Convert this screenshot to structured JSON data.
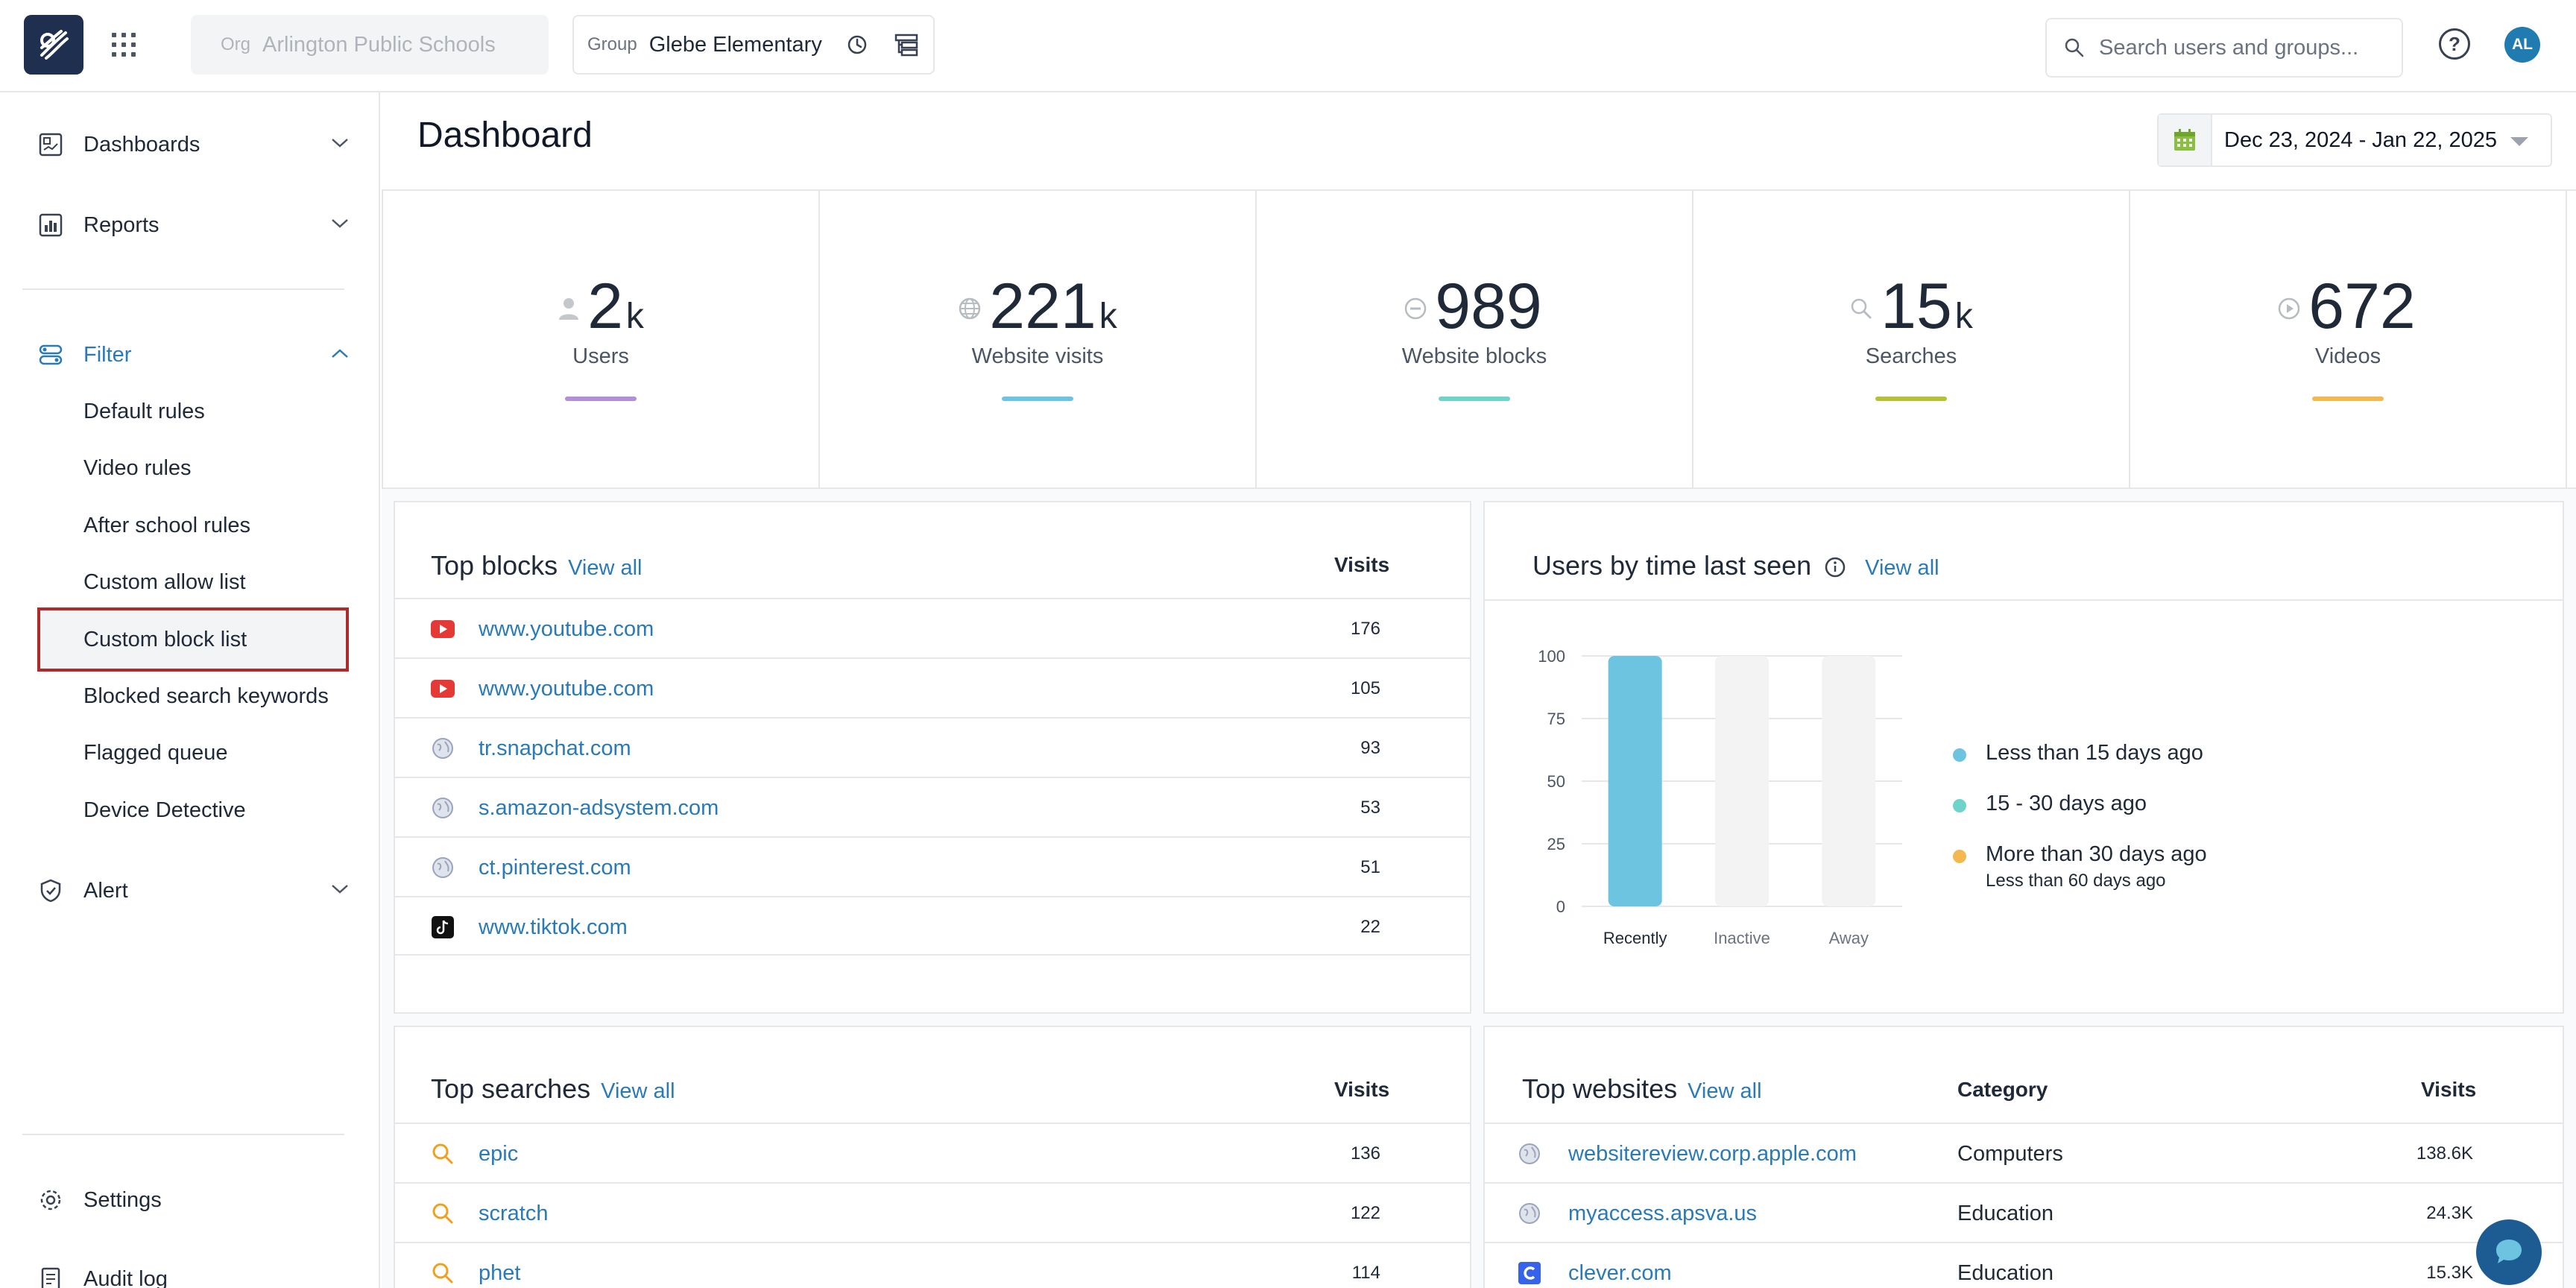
{
  "topbar": {
    "org_label": "Org",
    "org_value": "Arlington Public Schools",
    "group_label": "Group",
    "group_value": "Glebe Elementary",
    "search_placeholder": "Search users and groups...",
    "avatar_initials": "AL"
  },
  "sidebar": {
    "dashboards": "Dashboards",
    "reports": "Reports",
    "filter": "Filter",
    "filter_items": [
      "Default rules",
      "Video rules",
      "After school rules",
      "Custom allow list",
      "Custom block list",
      "Blocked search keywords",
      "Flagged queue",
      "Device Detective"
    ],
    "alert": "Alert",
    "settings": "Settings",
    "audit_log": "Audit log"
  },
  "main": {
    "title": "Dashboard",
    "date_range": "Dec 23, 2024 - Jan 22, 2025"
  },
  "stats": [
    {
      "value": "2",
      "unit": "k",
      "label": "Users",
      "color": "#b48fd9",
      "icon": "user-icon"
    },
    {
      "value": "221",
      "unit": "k",
      "label": "Website visits",
      "color": "#6cc4e0",
      "icon": "globe-icon"
    },
    {
      "value": "989",
      "unit": "",
      "label": "Website blocks",
      "color": "#6ed3c8",
      "icon": "block-icon"
    },
    {
      "value": "15",
      "unit": "k",
      "label": "Searches",
      "color": "#b5c235",
      "icon": "search-icon"
    },
    {
      "value": "672",
      "unit": "",
      "label": "Videos",
      "color": "#f4b850",
      "icon": "play-icon"
    }
  ],
  "top_blocks": {
    "title": "Top blocks",
    "view_all": "View all",
    "col_visits": "Visits",
    "rows": [
      {
        "name": "www.youtube.com",
        "visits": "176",
        "icon": "youtube-icon"
      },
      {
        "name": "www.youtube.com",
        "visits": "105",
        "icon": "youtube-icon"
      },
      {
        "name": "tr.snapchat.com",
        "visits": "93",
        "icon": "globe-icon"
      },
      {
        "name": "s.amazon-adsystem.com",
        "visits": "53",
        "icon": "globe-icon"
      },
      {
        "name": "ct.pinterest.com",
        "visits": "51",
        "icon": "globe-icon"
      },
      {
        "name": "www.tiktok.com",
        "visits": "22",
        "icon": "tiktok-icon"
      }
    ]
  },
  "users_last_seen": {
    "title": "Users by time last seen",
    "view_all": "View all",
    "legend": [
      {
        "label": "Less than 15 days ago",
        "color": "#6cc4e0"
      },
      {
        "label": "15 - 30 days ago",
        "color": "#6ed3c8"
      },
      {
        "label": "More than 30 days ago",
        "sub": "Less than 60 days ago",
        "color": "#f4b850"
      }
    ]
  },
  "chart_data": {
    "type": "bar",
    "categories": [
      "Recently",
      "Inactive",
      "Away"
    ],
    "values": [
      100,
      0,
      0
    ],
    "ylim": [
      0,
      100
    ],
    "yticks": [
      0,
      25,
      50,
      75,
      100
    ],
    "bar_color": "#6cc4e0",
    "track_color": "#f3f3f3"
  },
  "top_searches": {
    "title": "Top searches",
    "view_all": "View all",
    "col_visits": "Visits",
    "rows": [
      {
        "name": "epic",
        "visits": "136"
      },
      {
        "name": "scratch",
        "visits": "122"
      },
      {
        "name": "phet",
        "visits": "114"
      }
    ]
  },
  "top_websites": {
    "title": "Top websites",
    "view_all": "View all",
    "col_category": "Category",
    "col_visits": "Visits",
    "rows": [
      {
        "name": "websitereview.corp.apple.com",
        "category": "Computers",
        "visits": "138.6K",
        "icon": "globe-icon"
      },
      {
        "name": "myaccess.apsva.us",
        "category": "Education",
        "visits": "24.3K",
        "icon": "globe-icon"
      },
      {
        "name": "clever.com",
        "category": "Education",
        "visits": "15.3K",
        "icon": "clever-icon"
      }
    ]
  }
}
